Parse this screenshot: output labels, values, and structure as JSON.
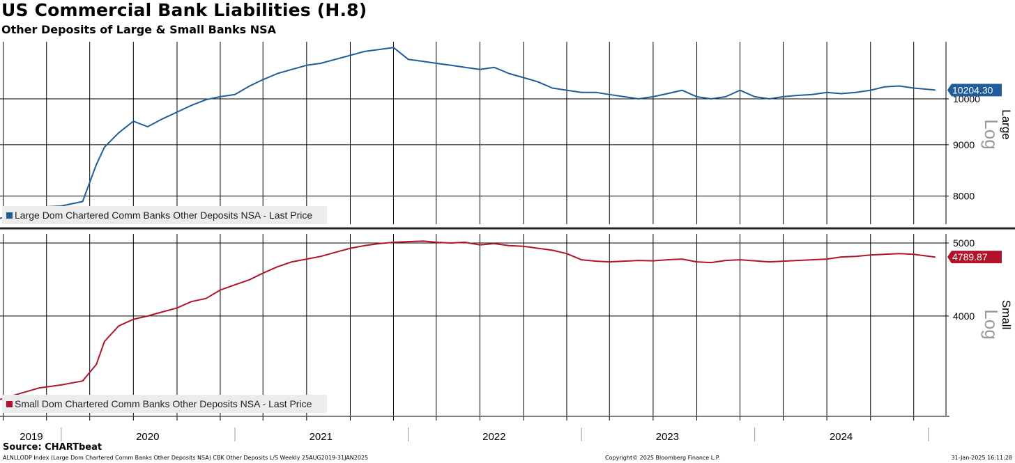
{
  "header": {
    "title": "US Commercial Bank Liabilities (H.8)",
    "subtitle": "Other Deposits of Large & Small Banks NSA"
  },
  "footer": {
    "source": "Source: CHARTbeat",
    "ticker_info": "ALNLLODP Index (Large Dom Chartered Comm Banks Other Deposits NSA) CBK Other Deposits L/S  Weekly 25AUG2019-31JAN2025",
    "copyright": "Copyright© 2025 Bloomberg Finance L.P.",
    "timestamp": "31-Jan-2025 16:11:28"
  },
  "colors": {
    "large": "#1f5c99",
    "small": "#b0142a",
    "grid": "#000000",
    "legend_bg": "#ececec",
    "log_label": "#999999"
  },
  "chart_data": [
    {
      "type": "line",
      "panel": "Large",
      "scale_label": "Log",
      "legend_label": "Large Dom Chartered Comm Banks Other Deposits NSA - Last Price",
      "last_value": 10204.3,
      "last_value_label": "10204.30",
      "yscale": "log",
      "ylim": [
        7500,
        11400
      ],
      "yticks": [
        8000,
        9000,
        10000
      ],
      "ytick_labels": [
        "8000",
        "9000",
        "10000"
      ],
      "series": [
        {
          "name": "Large Dom Chartered Comm Banks Other Deposits NSA",
          "x": [
            "2019-08-25",
            "2019-10-01",
            "2019-11-15",
            "2020-01-01",
            "2020-02-15",
            "2020-03-15",
            "2020-04-01",
            "2020-05-01",
            "2020-06-01",
            "2020-07-01",
            "2020-08-01",
            "2020-09-01",
            "2020-10-01",
            "2020-11-01",
            "2020-12-01",
            "2021-01-01",
            "2021-02-01",
            "2021-03-01",
            "2021-04-01",
            "2021-05-01",
            "2021-06-01",
            "2021-07-01",
            "2021-08-01",
            "2021-09-01",
            "2021-10-01",
            "2021-11-01",
            "2021-12-01",
            "2022-01-01",
            "2022-02-01",
            "2022-03-01",
            "2022-04-01",
            "2022-05-01",
            "2022-06-01",
            "2022-07-01",
            "2022-08-01",
            "2022-09-01",
            "2022-10-01",
            "2022-11-01",
            "2022-12-01",
            "2023-01-01",
            "2023-02-01",
            "2023-03-01",
            "2023-04-01",
            "2023-05-01",
            "2023-06-01",
            "2023-07-01",
            "2023-08-01",
            "2023-09-01",
            "2023-10-01",
            "2023-11-01",
            "2023-12-01",
            "2024-01-01",
            "2024-02-01",
            "2024-03-01",
            "2024-04-01",
            "2024-05-01",
            "2024-06-01",
            "2024-07-01",
            "2024-08-01",
            "2024-09-01",
            "2024-10-01",
            "2024-11-01",
            "2024-12-01",
            "2025-01-15"
          ],
          "values": [
            7600,
            7700,
            7800,
            7820,
            7900,
            8600,
            8950,
            9250,
            9500,
            9380,
            9550,
            9700,
            9850,
            9980,
            10050,
            10100,
            10300,
            10450,
            10600,
            10700,
            10800,
            10850,
            10950,
            11050,
            11150,
            11200,
            11250,
            10950,
            10900,
            10850,
            10800,
            10750,
            10700,
            10750,
            10600,
            10500,
            10400,
            10250,
            10200,
            10150,
            10150,
            10100,
            10050,
            10000,
            10050,
            10120,
            10200,
            10050,
            10000,
            10050,
            10200,
            10050,
            10000,
            10050,
            10080,
            10100,
            10150,
            10120,
            10150,
            10200,
            10280,
            10300,
            10250,
            10204.3
          ]
        }
      ]
    },
    {
      "type": "line",
      "panel": "Small",
      "scale_label": "Log",
      "legend_label": "Small Dom Chartered Comm Banks Other Deposits NSA - Last Price",
      "last_value": 4789.87,
      "last_value_label": "4789.87",
      "yscale": "log",
      "ylim": [
        2950,
        5140
      ],
      "yticks": [
        4000,
        5000
      ],
      "ytick_labels": [
        "4000",
        "5000"
      ],
      "series": [
        {
          "name": "Small Dom Chartered Comm Banks Other Deposits NSA",
          "x": [
            "2019-08-25",
            "2019-10-01",
            "2019-11-15",
            "2020-01-01",
            "2020-02-15",
            "2020-03-15",
            "2020-04-01",
            "2020-05-01",
            "2020-06-01",
            "2020-07-01",
            "2020-08-01",
            "2020-09-01",
            "2020-10-01",
            "2020-11-01",
            "2020-12-01",
            "2021-01-01",
            "2021-02-01",
            "2021-03-01",
            "2021-04-01",
            "2021-05-01",
            "2021-06-01",
            "2021-07-01",
            "2021-08-01",
            "2021-09-01",
            "2021-10-01",
            "2021-11-01",
            "2021-12-01",
            "2022-01-01",
            "2022-02-01",
            "2022-03-01",
            "2022-04-01",
            "2022-05-01",
            "2022-06-01",
            "2022-07-01",
            "2022-08-01",
            "2022-09-01",
            "2022-10-01",
            "2022-11-01",
            "2022-12-01",
            "2023-01-01",
            "2023-02-01",
            "2023-03-01",
            "2023-04-01",
            "2023-05-01",
            "2023-06-01",
            "2023-07-01",
            "2023-08-01",
            "2023-09-01",
            "2023-10-01",
            "2023-11-01",
            "2023-12-01",
            "2024-01-01",
            "2024-02-01",
            "2024-03-01",
            "2024-04-01",
            "2024-05-01",
            "2024-06-01",
            "2024-07-01",
            "2024-08-01",
            "2024-09-01",
            "2024-10-01",
            "2024-11-01",
            "2024-12-01",
            "2025-01-15"
          ],
          "values": [
            3100,
            3150,
            3210,
            3240,
            3280,
            3450,
            3700,
            3880,
            3960,
            4000,
            4050,
            4100,
            4180,
            4220,
            4330,
            4400,
            4470,
            4560,
            4650,
            4720,
            4760,
            4800,
            4860,
            4920,
            4960,
            4990,
            5010,
            5020,
            5030,
            5010,
            5000,
            5010,
            4970,
            4990,
            4960,
            4950,
            4920,
            4890,
            4840,
            4750,
            4730,
            4720,
            4730,
            4740,
            4735,
            4750,
            4760,
            4720,
            4710,
            4740,
            4750,
            4735,
            4720,
            4730,
            4740,
            4750,
            4760,
            4790,
            4800,
            4820,
            4830,
            4840,
            4830,
            4789.87
          ]
        }
      ]
    }
  ],
  "x_axis": {
    "labels": [
      "2019",
      "2020",
      "2021",
      "2022",
      "2023",
      "2024"
    ],
    "label_dates": [
      "2019-10-30",
      "2020-07-01",
      "2021-07-01",
      "2022-07-01",
      "2023-07-01",
      "2024-07-01"
    ],
    "year_boundaries": [
      "2020-01-01",
      "2021-01-01",
      "2022-01-01",
      "2023-01-01",
      "2024-01-01",
      "2025-01-01"
    ],
    "gridline_dates": [
      "2019-09-01",
      "2019-12-01",
      "2020-03-01",
      "2020-06-01",
      "2020-09-01",
      "2020-12-01",
      "2021-03-01",
      "2021-06-01",
      "2021-09-01",
      "2021-12-01",
      "2022-03-01",
      "2022-06-01",
      "2022-09-01",
      "2022-12-01",
      "2023-03-01",
      "2023-06-01",
      "2023-09-01",
      "2023-12-01",
      "2024-03-01",
      "2024-06-01",
      "2024-09-01",
      "2024-12-01"
    ],
    "xlim": [
      "2019-08-25",
      "2025-02-07"
    ]
  }
}
